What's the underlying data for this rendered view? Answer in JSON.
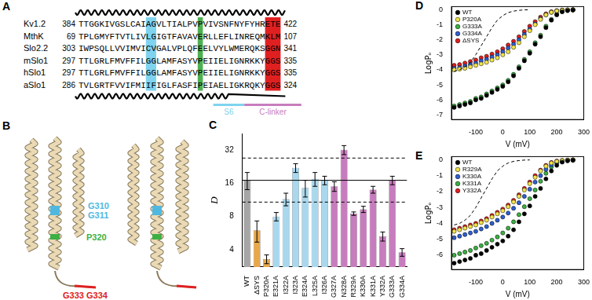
{
  "panel_labels": [
    "A",
    "B",
    "C",
    "D",
    "E"
  ],
  "alignment": {
    "rows": [
      {
        "name": "Kv1.2",
        "start": 384,
        "sequence": "TTGGKIVGSLCAIAGVLTIALPVPVIVSNFNYFYHRETE",
        "end": 422
      },
      {
        "name": "MthK",
        "start": 69,
        "sequence": "TPLGMYFTVTLIVLGIGTFAVAVERLLEFLINREQMKLM",
        "end": 107
      },
      {
        "name": "Slo2.2",
        "start": 303,
        "sequence": "IWPSQLLVVIMVICVGALVPLQFEELVYLWMERQKSGGN",
        "end": 341
      },
      {
        "name": "mSlo1",
        "start": 297,
        "sequence": "TTLGRLFMVFFILGGLAMFASYVPEIIELIGNRKKYGGS",
        "end": 335
      },
      {
        "name": "hSlo1",
        "start": 297,
        "sequence": "TTLGRLFMVFFILGGLAMFASYVPEIIELIGNRKKYGGS",
        "end": 335
      },
      {
        "name": "aSlo1",
        "start": 286,
        "sequence": "TVLGRTFVVIFMIIFIGLFASFIPEIAELIGKRQKYGGS",
        "end": 324
      }
    ],
    "highlights": [
      {
        "columns": [
          14,
          15
        ],
        "color": "#7fd3ee"
      },
      {
        "columns": [
          24
        ],
        "color": "#4cb050"
      },
      {
        "columns": [
          37,
          38,
          39
        ],
        "color": "#e02020"
      }
    ],
    "segments": [
      {
        "label": "S6",
        "color": "#7fd3ee"
      },
      {
        "label": "C-linker",
        "color": "#c77dbd"
      }
    ]
  },
  "structure": {
    "labels": [
      {
        "text": "G310",
        "color": "#4fb8e0"
      },
      {
        "text": "G311",
        "color": "#4fb8e0"
      },
      {
        "text": "P320",
        "color": "#3cb043"
      },
      {
        "text": "G333 G334",
        "color": "#e02020"
      }
    ]
  },
  "chart_data": [
    {
      "type": "bar",
      "y_label": "D",
      "log": "y",
      "grid": false,
      "categories": [
        "WT",
        "ΔSYS",
        "P320A",
        "E321A",
        "I322A",
        "I323A",
        "E324A",
        "L325A",
        "I326A",
        "G327A",
        "N328A",
        "R329A",
        "K330A",
        "K331A",
        "Y332A",
        "G333A",
        "G334A"
      ],
      "values": [
        17,
        6,
        3.3,
        8,
        11.5,
        22,
        14.5,
        17.5,
        17,
        15,
        32,
        8.5,
        9.3,
        14,
        5.3,
        17,
        3.8
      ],
      "errors": [
        3,
        1.3,
        0.3,
        0.7,
        1.5,
        2,
        2.5,
        2.5,
        1.5,
        1.5,
        3,
        0.3,
        0.6,
        1,
        0.5,
        1.5,
        0.3
      ],
      "colors": [
        "#a6a6a6",
        "#e8a84a",
        "#e8a84a",
        "#a9d8ee",
        "#a9d8ee",
        "#a9d8ee",
        "#a9d8ee",
        "#a9d8ee",
        "#a9d8ee",
        "#c77dbd",
        "#c77dbd",
        "#c77dbd",
        "#c77dbd",
        "#c77dbd",
        "#c77dbd",
        "#c77dbd",
        "#c77dbd"
      ],
      "ylim": [
        2.8,
        45
      ],
      "yticks": [
        4,
        8,
        16,
        32
      ],
      "reference_lines": [
        {
          "value": 17,
          "line_style": "solid"
        },
        {
          "value": 27,
          "line_style": "dashed"
        },
        {
          "value": 10.8,
          "line_style": "dashed"
        }
      ]
    },
    {
      "type": "scatter",
      "x_label": "V (mV)",
      "y_label": "LogPₒ",
      "marker": "circle",
      "grid": false,
      "legend": "upper left",
      "x": [
        -180,
        -160,
        -140,
        -120,
        -100,
        -80,
        -60,
        -40,
        -20,
        0,
        20,
        40,
        60,
        80,
        100,
        120,
        140,
        160,
        180,
        200,
        220,
        240,
        260
      ],
      "series": [
        {
          "name": "WT",
          "color": "#000000",
          "values": [
            -6.5,
            -6.4,
            -6.3,
            -6.2,
            -6.0,
            -5.9,
            -5.7,
            -5.5,
            -5.3,
            -5.1,
            -4.8,
            -4.4,
            -3.9,
            -3.4,
            -2.9,
            -2.3,
            -1.8,
            -1.2,
            -0.7,
            -0.35,
            -0.15,
            -0.07,
            -0.03
          ]
        },
        {
          "name": "P320A",
          "color": "#f2e34a",
          "values": [
            -4.0,
            -3.95,
            -3.9,
            -3.8,
            -3.7,
            -3.6,
            -3.5,
            -3.35,
            -3.2,
            -3.0,
            -2.8,
            -2.5,
            -2.2,
            -1.8,
            -1.4,
            -1.0,
            -0.65,
            -0.35,
            -0.18,
            -0.08,
            -0.04,
            -0.02,
            -0.01
          ]
        },
        {
          "name": "G333A",
          "color": "#3cb043",
          "values": [
            -6.4,
            -6.3,
            -6.2,
            -6.1,
            -5.9,
            -5.8,
            -5.6,
            -5.4,
            -5.2,
            -5.0,
            -4.7,
            -4.3,
            -3.8,
            -3.3,
            -2.8,
            -2.2,
            -1.7,
            -1.1,
            -0.65,
            -0.3,
            -0.12,
            -0.05,
            -0.02
          ]
        },
        {
          "name": "G334A",
          "color": "#2f5fd0",
          "values": [
            -3.9,
            -3.85,
            -3.75,
            -3.65,
            -3.55,
            -3.4,
            -3.3,
            -3.15,
            -3.0,
            -2.8,
            -2.55,
            -2.3,
            -2.0,
            -1.65,
            -1.3,
            -0.95,
            -0.6,
            -0.35,
            -0.18,
            -0.08,
            -0.04,
            -0.02,
            -0.01
          ]
        },
        {
          "name": "ΔSYS",
          "color": "#e02020",
          "values": [
            -3.7,
            -3.65,
            -3.55,
            -3.45,
            -3.35,
            -3.2,
            -3.1,
            -2.95,
            -2.8,
            -2.6,
            -2.35,
            -2.1,
            -1.8,
            -1.45,
            -1.1,
            -0.8,
            -0.5,
            -0.28,
            -0.14,
            -0.07,
            -0.03,
            -0.02,
            -0.01
          ]
        }
      ],
      "reference_curve": {
        "color": "#000000",
        "line_style": "dashed",
        "x": [
          -180,
          -160,
          -140,
          -120,
          -100,
          -80,
          -60,
          -40,
          -20,
          0,
          20,
          40,
          60,
          80,
          100
        ],
        "values": [
          -4.1,
          -4.0,
          -3.8,
          -3.5,
          -3.0,
          -2.4,
          -1.8,
          -1.2,
          -0.7,
          -0.4,
          -0.2,
          -0.1,
          -0.05,
          -0.02,
          -0.01
        ]
      },
      "xlim": [
        -190,
        300
      ],
      "xticks": [
        -100,
        0,
        100,
        200,
        300
      ],
      "ylim": [
        -7.3,
        0.2
      ],
      "yticks": [
        0,
        -1,
        -2,
        -3,
        -4,
        -5,
        -6,
        -7
      ]
    },
    {
      "type": "scatter",
      "x_label": "V (mV)",
      "y_label": "LogPₒ",
      "marker": "circle",
      "grid": false,
      "legend": "upper left",
      "x": [
        -180,
        -160,
        -140,
        -120,
        -100,
        -80,
        -60,
        -40,
        -20,
        0,
        20,
        40,
        60,
        80,
        100,
        120,
        140,
        160,
        180,
        200,
        220,
        240,
        260
      ],
      "series": [
        {
          "name": "WT",
          "color": "#000000",
          "values": [
            -6.5,
            -6.4,
            -6.3,
            -6.2,
            -6.0,
            -5.9,
            -5.7,
            -5.5,
            -5.3,
            -5.1,
            -4.8,
            -4.4,
            -3.9,
            -3.4,
            -2.9,
            -2.3,
            -1.8,
            -1.2,
            -0.7,
            -0.35,
            -0.15,
            -0.07,
            -0.03
          ]
        },
        {
          "name": "R329A",
          "color": "#f2e34a",
          "values": [
            -4.5,
            -4.4,
            -4.3,
            -4.2,
            -4.1,
            -3.95,
            -3.8,
            -3.6,
            -3.4,
            -3.2,
            -2.95,
            -2.65,
            -2.3,
            -1.9,
            -1.5,
            -1.1,
            -0.7,
            -0.4,
            -0.2,
            -0.1,
            -0.05,
            -0.02,
            -0.01
          ]
        },
        {
          "name": "K330A",
          "color": "#2f5fd0",
          "values": [
            -4.9,
            -4.8,
            -4.7,
            -4.6,
            -4.5,
            -4.35,
            -4.2,
            -4.0,
            -3.8,
            -3.6,
            -3.35,
            -3.05,
            -2.7,
            -2.3,
            -1.85,
            -1.4,
            -1.0,
            -0.6,
            -0.32,
            -0.15,
            -0.07,
            -0.03,
            -0.01
          ]
        },
        {
          "name": "K331A",
          "color": "#3cb043",
          "values": [
            -6.0,
            -5.9,
            -5.8,
            -5.7,
            -5.55,
            -5.4,
            -5.25,
            -5.05,
            -4.85,
            -4.6,
            -4.3,
            -3.9,
            -3.45,
            -2.95,
            -2.45,
            -1.9,
            -1.35,
            -0.85,
            -0.45,
            -0.2,
            -0.08,
            -0.03,
            -0.01
          ]
        },
        {
          "name": "Y332A",
          "color": "#e02020",
          "values": [
            -4.4,
            -4.3,
            -4.2,
            -4.1,
            -4.0,
            -3.85,
            -3.7,
            -3.5,
            -3.3,
            -3.1,
            -2.85,
            -2.55,
            -2.2,
            -1.8,
            -1.4,
            -1.0,
            -0.65,
            -0.35,
            -0.17,
            -0.08,
            -0.04,
            -0.02,
            -0.01
          ]
        }
      ],
      "reference_curve": {
        "color": "#000000",
        "line_style": "dashed",
        "x": [
          -180,
          -160,
          -140,
          -120,
          -100,
          -80,
          -60,
          -40,
          -20,
          0,
          20,
          40,
          60,
          80,
          100
        ],
        "values": [
          -4.1,
          -4.0,
          -3.8,
          -3.5,
          -3.0,
          -2.4,
          -1.8,
          -1.2,
          -0.7,
          -0.4,
          -0.2,
          -0.1,
          -0.05,
          -0.02,
          -0.01
        ]
      },
      "xlim": [
        -190,
        300
      ],
      "xticks": [
        -100,
        0,
        100,
        200,
        300
      ],
      "ylim": [
        -6.9,
        0.2
      ],
      "yticks": [
        0,
        -1,
        -2,
        -3,
        -4,
        -5,
        -6
      ]
    }
  ]
}
